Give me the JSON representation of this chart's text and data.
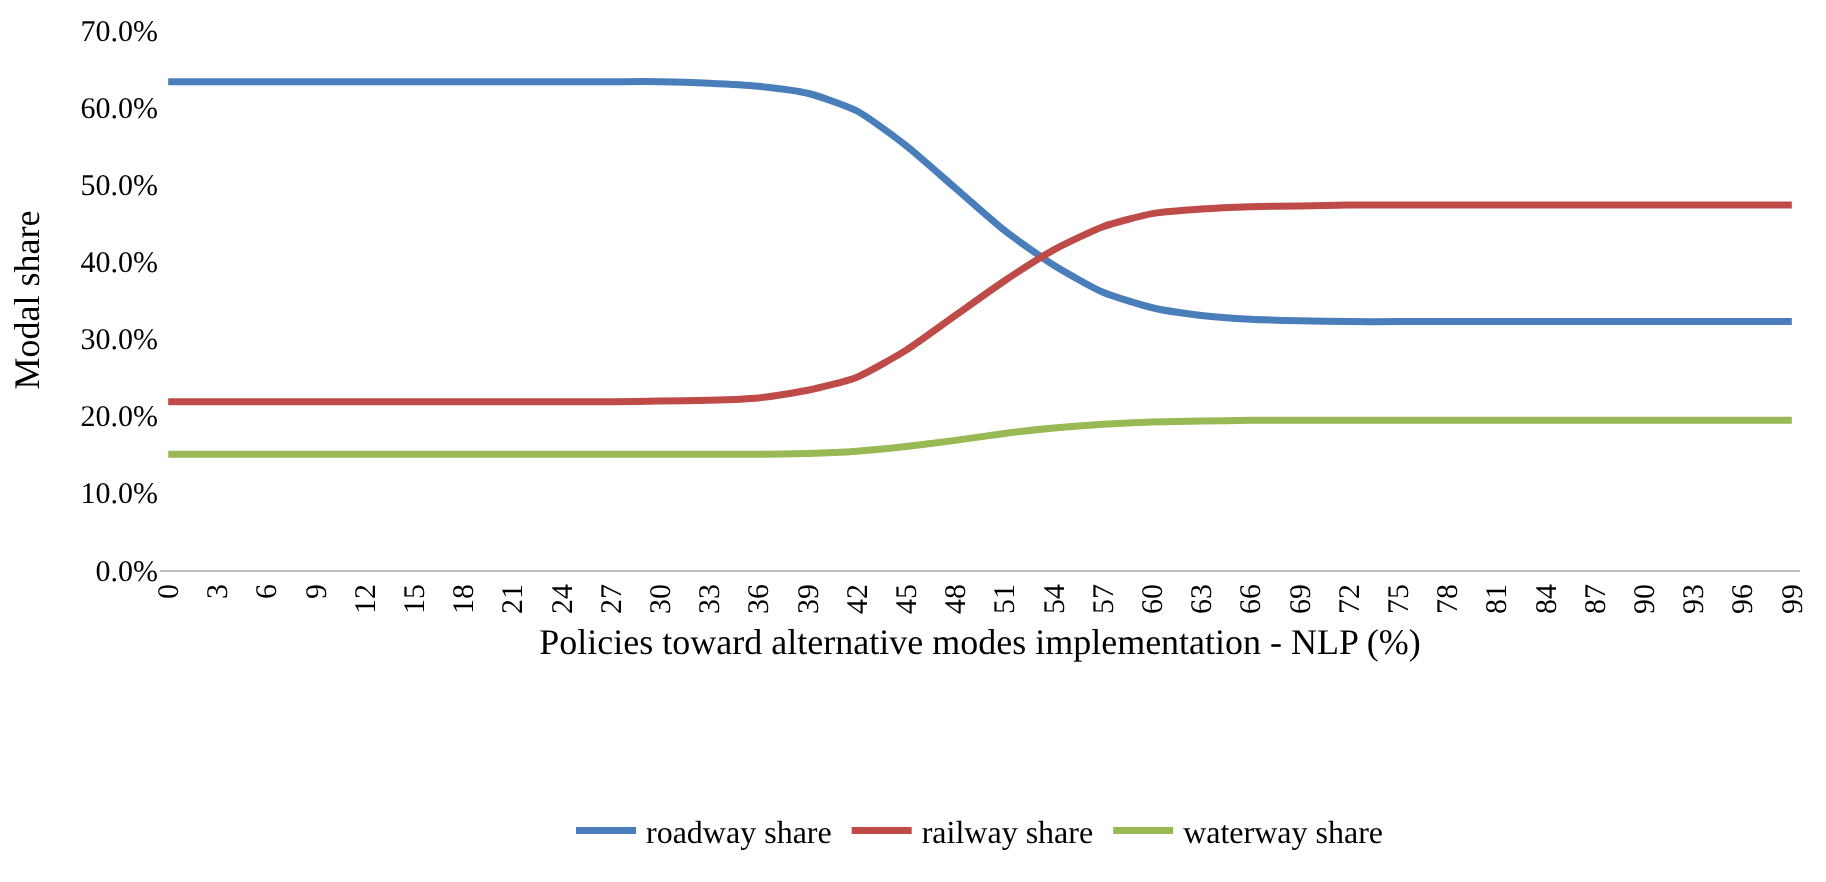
{
  "chart_data": {
    "type": "line",
    "xlabel": "Policies toward alternative modes implementation - NLP (%)",
    "ylabel": "Modal share",
    "x": [
      0,
      3,
      6,
      9,
      12,
      15,
      18,
      21,
      24,
      27,
      30,
      33,
      36,
      39,
      42,
      45,
      48,
      51,
      54,
      57,
      60,
      63,
      66,
      69,
      72,
      75,
      78,
      81,
      84,
      87,
      90,
      93,
      96,
      99
    ],
    "series": [
      {
        "name": "roadway share",
        "color": "#4a7ebb",
        "values": [
          63.3,
          63.3,
          63.3,
          63.3,
          63.3,
          63.3,
          63.3,
          63.3,
          63.3,
          63.3,
          63.3,
          63.1,
          62.7,
          61.8,
          59.5,
          55,
          49.5,
          44,
          39.5,
          36,
          34,
          33,
          32.5,
          32.3,
          32.2,
          32.2,
          32.2,
          32.2,
          32.2,
          32.2,
          32.2,
          32.2,
          32.2,
          32.2
        ]
      },
      {
        "name": "railway share",
        "color": "#be4b48",
        "values": [
          21.8,
          21.8,
          21.8,
          21.8,
          21.8,
          21.8,
          21.8,
          21.8,
          21.8,
          21.8,
          21.9,
          22,
          22.3,
          23.3,
          25,
          28.5,
          33,
          37.5,
          41.5,
          44.5,
          46.2,
          46.8,
          47.1,
          47.2,
          47.3,
          47.3,
          47.3,
          47.3,
          47.3,
          47.3,
          47.3,
          47.3,
          47.3,
          47.3
        ]
      },
      {
        "name": "waterway share",
        "color": "#98b954",
        "values": [
          15,
          15,
          15,
          15,
          15,
          15,
          15,
          15,
          15,
          15,
          15,
          15,
          15,
          15.1,
          15.4,
          16,
          16.8,
          17.7,
          18.4,
          18.9,
          19.2,
          19.3,
          19.4,
          19.4,
          19.4,
          19.4,
          19.4,
          19.4,
          19.4,
          19.4,
          19.4,
          19.4,
          19.4,
          19.4
        ]
      }
    ],
    "xlim": [
      -0.5,
      99.5
    ],
    "xticks": [
      0,
      3,
      6,
      9,
      12,
      15,
      18,
      21,
      24,
      27,
      30,
      33,
      36,
      39,
      42,
      45,
      48,
      51,
      54,
      57,
      60,
      63,
      66,
      69,
      72,
      75,
      78,
      81,
      84,
      87,
      90,
      93,
      96,
      99
    ],
    "ylim": [
      0,
      70
    ],
    "yticks": [
      {
        "value": 0,
        "label": "0.0%"
      },
      {
        "value": 10,
        "label": "10.0%"
      },
      {
        "value": 20,
        "label": "20.0%"
      },
      {
        "value": 30,
        "label": "30.0%"
      },
      {
        "value": 40,
        "label": "40.0%"
      },
      {
        "value": 50,
        "label": "50.0%"
      },
      {
        "value": 60,
        "label": "60.0%"
      },
      {
        "value": 70,
        "label": "70.0%"
      }
    ],
    "legend": "bottom",
    "marker": "none",
    "line_style": "solid"
  }
}
